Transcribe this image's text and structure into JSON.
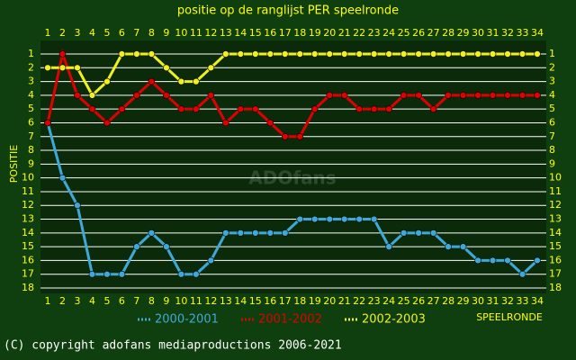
{
  "chart_data": {
    "type": "line",
    "title": "positie op de ranglijst PER speelronde",
    "y_label": "POSITIE",
    "x_label": "SPEELRONDE",
    "watermark": "ADOfans",
    "footer": "(C) copyright adofans mediaproductions 2006-2021",
    "x": [
      1,
      2,
      3,
      4,
      5,
      6,
      7,
      8,
      9,
      10,
      11,
      12,
      13,
      14,
      15,
      16,
      17,
      18,
      19,
      20,
      21,
      22,
      23,
      24,
      25,
      26,
      27,
      28,
      29,
      30,
      31,
      32,
      33,
      34
    ],
    "xlim": [
      1,
      34
    ],
    "ylim": [
      18,
      1
    ],
    "yticks": [
      1,
      2,
      3,
      4,
      5,
      6,
      7,
      8,
      9,
      10,
      11,
      12,
      13,
      14,
      15,
      16,
      17,
      18
    ],
    "grid": true,
    "series": [
      {
        "name": "2000-2001",
        "color": "#40a8d8",
        "values": [
          6,
          10,
          12,
          17,
          17,
          17,
          15,
          14,
          15,
          17,
          17,
          16,
          14,
          14,
          14,
          14,
          14,
          13,
          13,
          13,
          13,
          13,
          13,
          15,
          14,
          14,
          14,
          15,
          15,
          16,
          16,
          16,
          17,
          16
        ]
      },
      {
        "name": "2001-2002",
        "color": "#e00000",
        "values": [
          6,
          1,
          4,
          5,
          6,
          5,
          4,
          3,
          4,
          5,
          5,
          4,
          6,
          5,
          5,
          6,
          7,
          7,
          5,
          4,
          4,
          5,
          5,
          5,
          4,
          4,
          5,
          4,
          4,
          4,
          4,
          4,
          4,
          4
        ]
      },
      {
        "name": "2002-2003",
        "color": "#f0f020",
        "values": [
          2,
          2,
          2,
          4,
          3,
          1,
          1,
          1,
          2,
          3,
          3,
          2,
          1,
          1,
          1,
          1,
          1,
          1,
          1,
          1,
          1,
          1,
          1,
          1,
          1,
          1,
          1,
          1,
          1,
          1,
          1,
          1,
          1,
          1
        ]
      }
    ]
  }
}
